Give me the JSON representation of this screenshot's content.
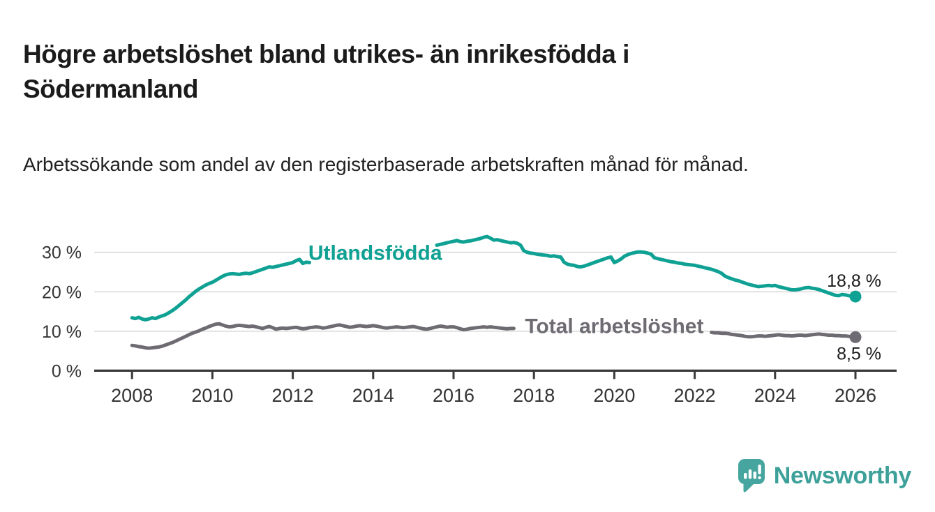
{
  "header": {
    "title": "Högre arbetslöshet bland utrikes- än inrikesfödda i Södermanland",
    "subtitle": "Arbetssökande som andel av den registerbaserade arbetskraften månad för månad."
  },
  "branding": {
    "logo_text": "Newsworthy",
    "logo_teal": "#46a59e",
    "text_teal": "#3da19a"
  },
  "colors": {
    "foreign_born_line": "#0fa193",
    "total_line": "#6f6b73",
    "axis": "#3a3a3a",
    "gridline": "#dbdbdb",
    "tick_text": "#333333",
    "annotation_text": "#1a1a1a"
  },
  "chart_data": {
    "type": "line",
    "title": "Högre arbetslöshet bland utrikes- än inrikesfödda i Södermanland",
    "subtitle": "Arbetssökande som andel av den registerbaserade arbetskraften månad för månad.",
    "x_unit": "month",
    "x_start_year": 2008,
    "x_end_year": 2026,
    "ylim": [
      0,
      36
    ],
    "grid": "horizontal",
    "y_ticks": [
      {
        "value": 0,
        "label": "0 %"
      },
      {
        "value": 10,
        "label": "10 %"
      },
      {
        "value": 20,
        "label": "20 %"
      },
      {
        "value": 30,
        "label": "30 %"
      }
    ],
    "x_ticks": [
      {
        "year": 2008,
        "label": "2008"
      },
      {
        "year": 2010,
        "label": "2010"
      },
      {
        "year": 2012,
        "label": "2012"
      },
      {
        "year": 2014,
        "label": "2014"
      },
      {
        "year": 2016,
        "label": "2016"
      },
      {
        "year": 2018,
        "label": "2018"
      },
      {
        "year": 2020,
        "label": "2020"
      },
      {
        "year": 2022,
        "label": "2022"
      },
      {
        "year": 2024,
        "label": "2024"
      },
      {
        "year": 2026,
        "label": "2026"
      }
    ],
    "note": "Monthly values Jan 2008 - Jan 2026; null = segment hidden behind inline series label in the graphic",
    "series": [
      {
        "name": "Utlandsfödda",
        "color": "#0fa193",
        "end_label": "18,8 %",
        "end_value": 18.8,
        "inline_label": {
          "text": "Utlandsfödda",
          "x_year": 2014.05,
          "y_value": 29.9
        },
        "values": [
          13.4,
          13.2,
          13.5,
          13.1,
          12.9,
          13.1,
          13.4,
          13.2,
          13.6,
          13.9,
          14.2,
          14.7,
          15.2,
          15.8,
          16.5,
          17.2,
          17.9,
          18.7,
          19.4,
          20.1,
          20.7,
          21.2,
          21.7,
          22.1,
          22.4,
          22.9,
          23.4,
          23.9,
          24.3,
          24.5,
          24.6,
          24.5,
          24.4,
          24.6,
          24.7,
          24.6,
          24.8,
          25.1,
          25.4,
          25.7,
          26.0,
          26.3,
          26.2,
          26.4,
          26.6,
          26.8,
          27.0,
          27.2,
          27.4,
          27.9,
          28.2,
          27.2,
          27.5,
          27.4,
          null,
          null,
          null,
          null,
          null,
          null,
          null,
          null,
          null,
          null,
          null,
          null,
          null,
          null,
          null,
          null,
          null,
          null,
          null,
          null,
          null,
          null,
          null,
          null,
          null,
          null,
          null,
          null,
          null,
          null,
          null,
          null,
          null,
          null,
          null,
          null,
          null,
          31.8,
          32.0,
          32.2,
          32.4,
          32.6,
          32.8,
          33.0,
          32.7,
          32.6,
          32.8,
          32.9,
          33.1,
          33.3,
          33.5,
          33.8,
          34.0,
          33.6,
          33.1,
          33.2,
          33.0,
          32.8,
          32.6,
          32.4,
          32.5,
          32.3,
          31.8,
          30.4,
          30.0,
          29.8,
          29.7,
          29.5,
          29.4,
          29.3,
          29.2,
          29.0,
          29.1,
          28.9,
          28.8,
          27.5,
          27.0,
          26.8,
          26.7,
          26.4,
          26.3,
          26.5,
          26.8,
          27.1,
          27.4,
          27.7,
          28.0,
          28.3,
          28.6,
          28.8,
          27.4,
          27.8,
          28.3,
          29.0,
          29.4,
          29.7,
          29.9,
          30.1,
          30.1,
          30.0,
          29.8,
          29.5,
          28.6,
          28.4,
          28.2,
          28.0,
          27.8,
          27.6,
          27.5,
          27.3,
          27.2,
          27.0,
          26.9,
          26.8,
          26.7,
          26.5,
          26.3,
          26.1,
          25.9,
          25.7,
          25.4,
          25.1,
          24.7,
          24.0,
          23.6,
          23.3,
          23.0,
          22.8,
          22.5,
          22.2,
          21.9,
          21.7,
          21.5,
          21.3,
          21.4,
          21.5,
          21.6,
          21.5,
          21.6,
          21.3,
          21.1,
          20.9,
          20.7,
          20.5,
          20.5,
          20.6,
          20.8,
          21.0,
          21.1,
          20.9,
          20.8,
          20.6,
          20.3,
          20.0,
          19.7,
          19.4,
          19.1,
          19.0,
          19.3,
          19.2,
          19.0,
          18.9,
          18.8
        ]
      },
      {
        "name": "Total arbetslöshet",
        "color": "#6f6b73",
        "end_label": "8,5 %",
        "end_value": 8.5,
        "inline_label": {
          "text": "Total arbetslöshet",
          "x_year": 2020.0,
          "y_value": 11.3
        },
        "values": [
          6.4,
          6.3,
          6.1,
          6.0,
          5.8,
          5.7,
          5.8,
          5.9,
          6.0,
          6.2,
          6.5,
          6.8,
          7.1,
          7.5,
          7.9,
          8.3,
          8.7,
          9.1,
          9.5,
          9.8,
          10.1,
          10.5,
          10.8,
          11.2,
          11.5,
          11.8,
          11.9,
          11.6,
          11.3,
          11.1,
          11.2,
          11.4,
          11.5,
          11.4,
          11.3,
          11.2,
          11.3,
          11.1,
          10.9,
          10.7,
          11.0,
          11.2,
          10.9,
          10.5,
          10.7,
          10.8,
          10.7,
          10.8,
          10.9,
          11.0,
          10.8,
          10.6,
          10.7,
          10.9,
          11.0,
          11.1,
          11.0,
          10.8,
          10.9,
          11.1,
          11.3,
          11.5,
          11.6,
          11.4,
          11.2,
          11.0,
          11.1,
          11.3,
          11.4,
          11.3,
          11.2,
          11.3,
          11.4,
          11.3,
          11.1,
          10.9,
          10.8,
          10.9,
          11.0,
          11.1,
          11.0,
          10.9,
          11.0,
          11.1,
          11.2,
          11.0,
          10.8,
          10.6,
          10.5,
          10.7,
          10.9,
          11.1,
          11.3,
          11.2,
          11.0,
          11.1,
          11.1,
          10.9,
          10.6,
          10.4,
          10.5,
          10.7,
          10.8,
          10.9,
          11.0,
          11.1,
          11.0,
          11.1,
          11.0,
          10.9,
          10.8,
          10.7,
          10.6,
          10.7,
          10.7,
          null,
          null,
          null,
          null,
          null,
          null,
          null,
          null,
          null,
          null,
          null,
          null,
          null,
          null,
          null,
          null,
          null,
          null,
          null,
          null,
          null,
          null,
          null,
          null,
          null,
          null,
          null,
          null,
          null,
          null,
          null,
          null,
          null,
          null,
          null,
          null,
          null,
          null,
          null,
          null,
          null,
          null,
          null,
          null,
          null,
          null,
          null,
          null,
          null,
          null,
          null,
          null,
          null,
          null,
          null,
          null,
          null,
          null,
          9.7,
          9.6,
          9.6,
          9.5,
          9.5,
          9.4,
          9.2,
          9.1,
          9.0,
          8.9,
          8.7,
          8.6,
          8.6,
          8.7,
          8.8,
          8.8,
          8.7,
          8.8,
          8.9,
          9.0,
          9.1,
          9.0,
          8.9,
          8.9,
          8.8,
          8.9,
          9.0,
          9.0,
          8.9,
          9.0,
          9.1,
          9.2,
          9.3,
          9.2,
          9.1,
          9.0,
          9.0,
          8.9,
          8.9,
          8.8,
          8.8,
          8.7,
          8.6,
          8.5
        ]
      }
    ]
  }
}
